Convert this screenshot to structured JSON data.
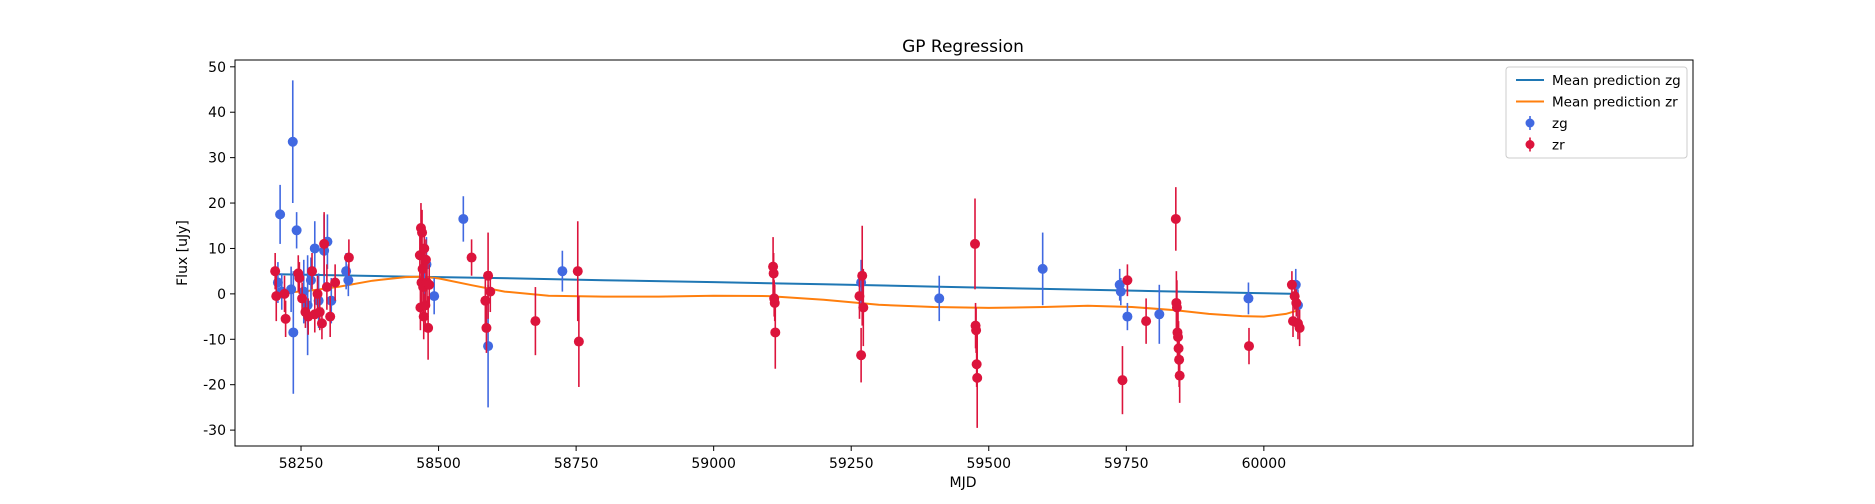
{
  "chart_data": {
    "type": "scatter",
    "title": "GP Regression",
    "xlabel": "MJD",
    "ylabel": "Flux [uJy]",
    "xlim": [
      58130,
      60780
    ],
    "ylim": [
      -33.5,
      51.5
    ],
    "xticks": [
      58250,
      58500,
      58750,
      59000,
      59250,
      59500,
      59750,
      60000
    ],
    "yticks": [
      -30,
      -20,
      -10,
      0,
      10,
      20,
      30,
      40,
      50
    ],
    "grid": false,
    "legend_position": "top-right",
    "legend": [
      {
        "label": "Mean prediction zg",
        "kind": "line",
        "color": "#1f77b4"
      },
      {
        "label": "Mean prediction zr",
        "kind": "line",
        "color": "#ff7f0e"
      },
      {
        "label": "zg",
        "kind": "errorbar",
        "color": "#4169e1"
      },
      {
        "label": "zr",
        "kind": "errorbar",
        "color": "#dc143c"
      }
    ],
    "lines": [
      {
        "name": "Mean prediction zg",
        "color": "#1f77b4",
        "points": [
          [
            58210,
            4.3
          ],
          [
            58400,
            3.9
          ],
          [
            58600,
            3.5
          ],
          [
            58800,
            3.0
          ],
          [
            59000,
            2.6
          ],
          [
            59200,
            2.1
          ],
          [
            59400,
            1.6
          ],
          [
            59600,
            1.1
          ],
          [
            59800,
            0.6
          ],
          [
            60060,
            0.0
          ]
        ]
      },
      {
        "name": "Mean prediction zr",
        "color": "#ff7f0e",
        "points": [
          [
            58210,
            0.2
          ],
          [
            58260,
            0.6
          ],
          [
            58320,
            1.6
          ],
          [
            58380,
            2.9
          ],
          [
            58440,
            3.7
          ],
          [
            58470,
            3.8
          ],
          [
            58500,
            3.4
          ],
          [
            58560,
            1.9
          ],
          [
            58620,
            0.5
          ],
          [
            58700,
            -0.4
          ],
          [
            58800,
            -0.6
          ],
          [
            58900,
            -0.6
          ],
          [
            59000,
            -0.4
          ],
          [
            59100,
            -0.5
          ],
          [
            59200,
            -1.3
          ],
          [
            59300,
            -2.4
          ],
          [
            59400,
            -2.9
          ],
          [
            59500,
            -3.1
          ],
          [
            59600,
            -2.9
          ],
          [
            59680,
            -2.6
          ],
          [
            59760,
            -2.9
          ],
          [
            59840,
            -3.6
          ],
          [
            59900,
            -4.4
          ],
          [
            59960,
            -4.9
          ],
          [
            60000,
            -5.0
          ],
          [
            60040,
            -4.4
          ],
          [
            60060,
            -3.7
          ]
        ]
      }
    ],
    "series": [
      {
        "name": "zg",
        "color": "#4169e1",
        "points": [
          {
            "x": 58208,
            "y": 2.5,
            "err": 4.5
          },
          {
            "x": 58212,
            "y": 17.5,
            "err": 6.5
          },
          {
            "x": 58215,
            "y": 0.5,
            "err": 4.0
          },
          {
            "x": 58232,
            "y": 1.0,
            "err": 5.0
          },
          {
            "x": 58235,
            "y": 33.5,
            "err": 13.5
          },
          {
            "x": 58236,
            "y": -8.5,
            "err": 13.5
          },
          {
            "x": 58242,
            "y": 14.0,
            "err": 4.0
          },
          {
            "x": 58255,
            "y": 0.5,
            "err": 7.0
          },
          {
            "x": 58262,
            "y": -2.5,
            "err": 11.0
          },
          {
            "x": 58268,
            "y": 3.0,
            "err": 5.0
          },
          {
            "x": 58275,
            "y": 10.0,
            "err": 6.0
          },
          {
            "x": 58282,
            "y": -1.5,
            "err": 6.0
          },
          {
            "x": 58292,
            "y": 9.5,
            "err": 8.0
          },
          {
            "x": 58298,
            "y": 11.5,
            "err": 6.0
          },
          {
            "x": 58305,
            "y": -1.5,
            "err": 5.0
          },
          {
            "x": 58332,
            "y": 5.0,
            "err": 4.0
          },
          {
            "x": 58336,
            "y": 3.0,
            "err": 3.5
          },
          {
            "x": 58474,
            "y": 2.0,
            "err": 5.0
          },
          {
            "x": 58478,
            "y": 6.5,
            "err": 6.0
          },
          {
            "x": 58492,
            "y": -0.5,
            "err": 4.0
          },
          {
            "x": 58545,
            "y": 16.5,
            "err": 5.0
          },
          {
            "x": 58590,
            "y": -11.5,
            "err": 13.5
          },
          {
            "x": 58725,
            "y": 5.0,
            "err": 4.5
          },
          {
            "x": 59268,
            "y": 2.5,
            "err": 5.0
          },
          {
            "x": 59410,
            "y": -1.0,
            "err": 5.0
          },
          {
            "x": 59598,
            "y": 5.5,
            "err": 8.0
          },
          {
            "x": 59738,
            "y": 2.0,
            "err": 3.5
          },
          {
            "x": 59740,
            "y": 0.5,
            "err": 3.0
          },
          {
            "x": 59752,
            "y": -5.0,
            "err": 3.0
          },
          {
            "x": 59810,
            "y": -4.5,
            "err": 6.5
          },
          {
            "x": 59972,
            "y": -1.0,
            "err": 3.5
          },
          {
            "x": 60058,
            "y": 2.0,
            "err": 3.5
          },
          {
            "x": 60062,
            "y": -2.5,
            "err": 3.5
          }
        ]
      },
      {
        "name": "zr",
        "color": "#dc143c",
        "points": [
          {
            "x": 58203,
            "y": 5.0,
            "err": 4.0
          },
          {
            "x": 58205,
            "y": -0.5,
            "err": 5.5
          },
          {
            "x": 58220,
            "y": 0.0,
            "err": 4.0
          },
          {
            "x": 58222,
            "y": -5.5,
            "err": 4.0
          },
          {
            "x": 58245,
            "y": 4.5,
            "err": 4.0
          },
          {
            "x": 58247,
            "y": 3.5,
            "err": 3.5
          },
          {
            "x": 58252,
            "y": -1.0,
            "err": 3.5
          },
          {
            "x": 58258,
            "y": -4.0,
            "err": 3.5
          },
          {
            "x": 58263,
            "y": -5.0,
            "err": 4.0
          },
          {
            "x": 58270,
            "y": 5.0,
            "err": 4.0
          },
          {
            "x": 58275,
            "y": -4.5,
            "err": 4.0
          },
          {
            "x": 58280,
            "y": 0.0,
            "err": 4.0
          },
          {
            "x": 58284,
            "y": -4.0,
            "err": 4.0
          },
          {
            "x": 58288,
            "y": -6.5,
            "err": 3.5
          },
          {
            "x": 58292,
            "y": 11.0,
            "err": 7.0
          },
          {
            "x": 58297,
            "y": 1.5,
            "err": 5.0
          },
          {
            "x": 58303,
            "y": -5.0,
            "err": 4.5
          },
          {
            "x": 58312,
            "y": 2.5,
            "err": 4.0
          },
          {
            "x": 58337,
            "y": 8.0,
            "err": 4.0
          },
          {
            "x": 58466,
            "y": 8.5,
            "err": 5.0
          },
          {
            "x": 58467,
            "y": -3.0,
            "err": 5.0
          },
          {
            "x": 58468,
            "y": 14.5,
            "err": 5.5
          },
          {
            "x": 58469,
            "y": 2.5,
            "err": 5.0
          },
          {
            "x": 58470,
            "y": 13.5,
            "err": 5.0
          },
          {
            "x": 58471,
            "y": 5.5,
            "err": 5.0
          },
          {
            "x": 58472,
            "y": 1.5,
            "err": 5.0
          },
          {
            "x": 58473,
            "y": -5.0,
            "err": 5.0
          },
          {
            "x": 58474,
            "y": 10.0,
            "err": 5.0
          },
          {
            "x": 58476,
            "y": -2.5,
            "err": 5.0
          },
          {
            "x": 58477,
            "y": 7.5,
            "err": 4.5
          },
          {
            "x": 58479,
            "y": 2.5,
            "err": 4.5
          },
          {
            "x": 58481,
            "y": -7.5,
            "err": 7.0
          },
          {
            "x": 58483,
            "y": 2.0,
            "err": 4.5
          },
          {
            "x": 58560,
            "y": 8.0,
            "err": 4.0
          },
          {
            "x": 58585,
            "y": -1.5,
            "err": 5.5
          },
          {
            "x": 58587,
            "y": -7.5,
            "err": 5.5
          },
          {
            "x": 58590,
            "y": 4.0,
            "err": 9.5
          },
          {
            "x": 58594,
            "y": 0.5,
            "err": 4.5
          },
          {
            "x": 58676,
            "y": -6.0,
            "err": 7.5
          },
          {
            "x": 58753,
            "y": 5.0,
            "err": 11.0
          },
          {
            "x": 58755,
            "y": -10.5,
            "err": 10.0
          },
          {
            "x": 59108,
            "y": 6.0,
            "err": 6.5
          },
          {
            "x": 59109,
            "y": 4.5,
            "err": 4.5
          },
          {
            "x": 59110,
            "y": -1.0,
            "err": 4.0
          },
          {
            "x": 59111,
            "y": -2.0,
            "err": 4.0
          },
          {
            "x": 59112,
            "y": -8.5,
            "err": 8.0
          },
          {
            "x": 59265,
            "y": -0.5,
            "err": 5.0
          },
          {
            "x": 59268,
            "y": -13.5,
            "err": 6.0
          },
          {
            "x": 59270,
            "y": 4.0,
            "err": 11.0
          },
          {
            "x": 59272,
            "y": -3.0,
            "err": 8.5
          },
          {
            "x": 59475,
            "y": 11.0,
            "err": 10.0
          },
          {
            "x": 59476,
            "y": -7.0,
            "err": 5.0
          },
          {
            "x": 59477,
            "y": -8.0,
            "err": 5.0
          },
          {
            "x": 59478,
            "y": -15.5,
            "err": 5.0
          },
          {
            "x": 59479,
            "y": -18.5,
            "err": 11.0
          },
          {
            "x": 59743,
            "y": -19.0,
            "err": 7.5
          },
          {
            "x": 59752,
            "y": 3.0,
            "err": 3.5
          },
          {
            "x": 59786,
            "y": -6.0,
            "err": 5.0
          },
          {
            "x": 59840,
            "y": 16.5,
            "err": 7.0
          },
          {
            "x": 59841,
            "y": -2.0,
            "err": 7.0
          },
          {
            "x": 59842,
            "y": -3.0,
            "err": 6.0
          },
          {
            "x": 59843,
            "y": -8.5,
            "err": 6.0
          },
          {
            "x": 59844,
            "y": -9.5,
            "err": 6.0
          },
          {
            "x": 59845,
            "y": -12.0,
            "err": 6.0
          },
          {
            "x": 59846,
            "y": -14.5,
            "err": 6.0
          },
          {
            "x": 59847,
            "y": -18.0,
            "err": 6.0
          },
          {
            "x": 59973,
            "y": -11.5,
            "err": 4.0
          },
          {
            "x": 60051,
            "y": 2.0,
            "err": 3.0
          },
          {
            "x": 60053,
            "y": -6.0,
            "err": 3.5
          },
          {
            "x": 60056,
            "y": -0.5,
            "err": 3.0
          },
          {
            "x": 60059,
            "y": -2.0,
            "err": 3.0
          },
          {
            "x": 60062,
            "y": -6.5,
            "err": 3.5
          },
          {
            "x": 60065,
            "y": -7.5,
            "err": 4.0
          }
        ]
      }
    ]
  }
}
